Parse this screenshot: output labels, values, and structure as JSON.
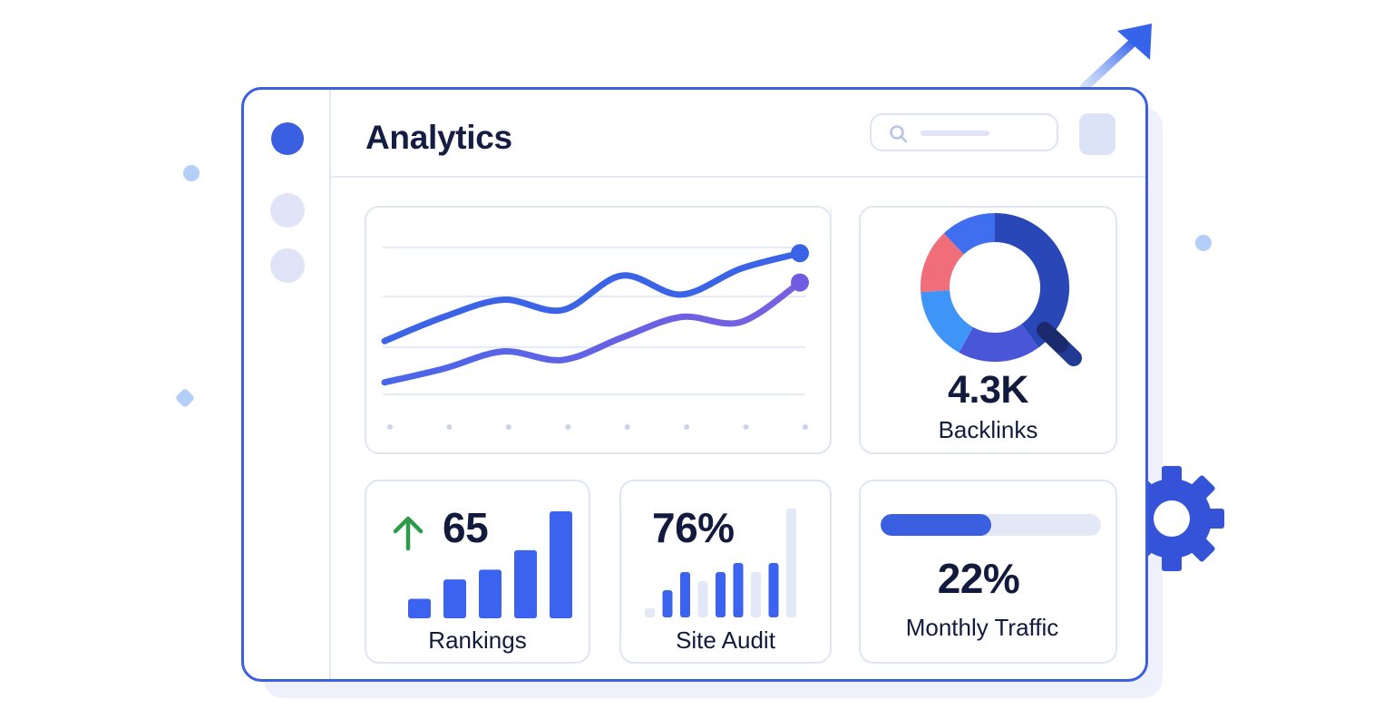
{
  "header": {
    "title": "Analytics",
    "search": {
      "placeholder": ""
    }
  },
  "sidebar": {
    "items": [
      {
        "state": "active",
        "color": "#3a5fe0"
      },
      {
        "state": "inactive",
        "color": "#dfe4f7"
      },
      {
        "state": "inactive",
        "color": "#dfe4f7"
      }
    ]
  },
  "cards": {
    "backlinks": {
      "value": "4.3K",
      "label": "Backlinks"
    },
    "rankings": {
      "value": "65",
      "label": "Rankings",
      "trend": "up"
    },
    "site_audit": {
      "value": "76%",
      "label": "Site Audit"
    },
    "monthly_traffic": {
      "value": "22%",
      "label": "Monthly Traffic",
      "progress_fraction": 0.5
    }
  },
  "chart_data": [
    {
      "type": "line",
      "x": [
        1,
        2,
        3,
        4,
        5,
        6,
        7,
        8
      ],
      "series": [
        {
          "color": "#3b63e6",
          "values": [
            3.2,
            4.6,
            5.6,
            5.0,
            7.0,
            5.9,
            7.4,
            8.3
          ]
        },
        {
          "color": "#6f5ce2",
          "values": [
            0.8,
            1.6,
            2.6,
            2.1,
            3.4,
            4.6,
            4.3,
            6.6
          ]
        }
      ],
      "ylim": [
        0,
        10
      ],
      "grid": true
    },
    {
      "type": "pie",
      "values": [
        40,
        18,
        16,
        14,
        12
      ],
      "colors": [
        "#2a47b8",
        "#4a56d8",
        "#3f95f7",
        "#f06e79",
        "#3f6fee"
      ]
    },
    {
      "type": "bar",
      "values": [
        2,
        4,
        5,
        7,
        11
      ],
      "color": "#3b63f0"
    },
    {
      "type": "bar",
      "values": [
        1,
        3,
        5,
        4,
        5,
        6,
        5,
        6,
        12
      ],
      "highlight": [
        false,
        true,
        true,
        false,
        true,
        true,
        false,
        true,
        false
      ],
      "colors": {
        "highlight": "#3b63f0",
        "muted": "#e3e8f7"
      }
    }
  ],
  "colors": {
    "accent": "#3a5fe0",
    "text": "#121a3d",
    "trend_up": "#2e9b4a",
    "progress_fill": "#3a5fe0",
    "progress_track": "#e3e8f7"
  },
  "icons": {
    "search": "search-icon",
    "arrow_up_right": "arrow-up-right-icon",
    "gear": "gear-icon",
    "magnifier": "magnifier-icon",
    "trend_up": "arrow-up-icon"
  }
}
